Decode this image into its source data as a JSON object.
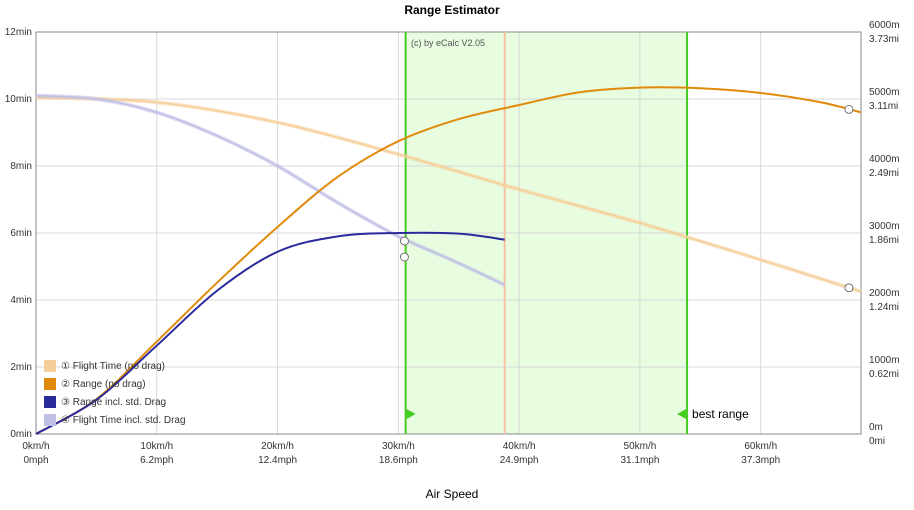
{
  "chart_data": {
    "type": "line",
    "title": "Range Estimator",
    "xlabel": "Air Speed",
    "copyright": "(c) by eCalc  V2.05",
    "x_ticks_kmh": [
      "0km/h",
      "10km/h",
      "20km/h",
      "30km/h",
      "40km/h",
      "50km/h",
      "60km/h"
    ],
    "x_ticks_mph": [
      "0mph",
      "6.2mph",
      "12.4mph",
      "18.6mph",
      "24.9mph",
      "31.1mph",
      "37.3mph"
    ],
    "y_left_ticks": [
      "0min",
      "2min",
      "4min",
      "6min",
      "8min",
      "10min",
      "12min"
    ],
    "y_right_ticks_m": [
      "0m",
      "1000m",
      "2000m",
      "3000m",
      "4000m",
      "5000m",
      "6000m"
    ],
    "y_right_ticks_mi": [
      "0mi",
      "0.62mi",
      "1.24mi",
      "1.86mi",
      "2.49mi",
      "3.11mi",
      "3.73mi"
    ],
    "xlim": [
      0,
      68.3
    ],
    "ylim_left_min": [
      0,
      12
    ],
    "ylim_right_m": [
      0,
      6000
    ],
    "grid": true,
    "legend_position": "bottom-left",
    "series": [
      {
        "name": "Flight Time (no drag)",
        "marker": "①",
        "axis": "left",
        "color": "#f5cf9a",
        "x": [
          0,
          10,
          20,
          30,
          40,
          50,
          60,
          68.3
        ],
        "y": [
          10.05,
          9.9,
          9.3,
          8.35,
          7.3,
          6.3,
          5.2,
          4.25
        ]
      },
      {
        "name": "Range (no drag)",
        "marker": "②",
        "axis": "right",
        "color": "#e08a0b",
        "x": [
          0,
          5,
          10,
          15,
          20,
          25,
          30,
          35,
          40,
          45,
          50,
          55,
          60,
          65,
          68.3
        ],
        "y": [
          0,
          520,
          1380,
          2260,
          3090,
          3840,
          4370,
          4700,
          4910,
          5100,
          5170,
          5160,
          5090,
          4950,
          4800
        ]
      },
      {
        "name": "Range incl. std. Drag",
        "marker": "③",
        "axis": "right",
        "color": "#2a2a9c",
        "x": [
          0,
          5,
          10,
          15,
          20,
          25,
          30,
          35,
          38.8
        ],
        "y": [
          0,
          510,
          1320,
          2140,
          2720,
          2950,
          3000,
          2990,
          2900
        ]
      },
      {
        "name": "Flight Time incl. std. Drag",
        "marker": "④",
        "axis": "left",
        "color": "#c0bfe6",
        "x": [
          0,
          5,
          10,
          15,
          20,
          25,
          30,
          35,
          38.8
        ],
        "y": [
          10.1,
          10.0,
          9.6,
          8.9,
          8.0,
          6.9,
          5.9,
          5.1,
          4.45
        ]
      }
    ],
    "vertical_lines": [
      {
        "x": 30.6,
        "color": "#44cc22",
        "label": ""
      },
      {
        "x": 38.8,
        "color": "#f5c3a3",
        "label": ""
      },
      {
        "x": 53.9,
        "color": "#44cc22",
        "label": "best range"
      }
    ],
    "shaded_region": {
      "x_from": 30.6,
      "x_to": 53.9,
      "color": "#e8fce0"
    },
    "series_markers": [
      {
        "marker": "①",
        "x": 67.3
      },
      {
        "marker": "②",
        "x": 67.3
      },
      {
        "marker": "③",
        "x": 30.5
      },
      {
        "marker": "④",
        "x": 30.5
      }
    ]
  }
}
